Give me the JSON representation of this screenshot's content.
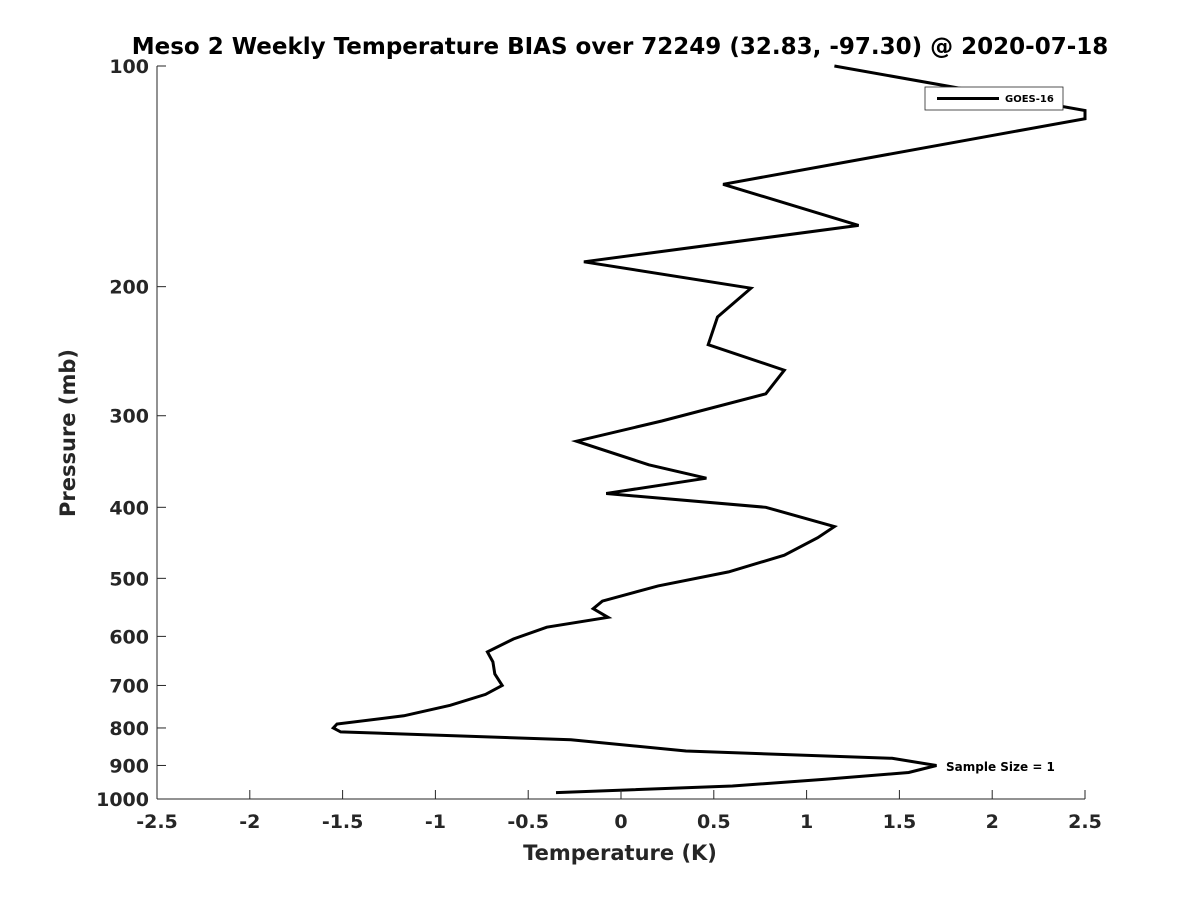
{
  "chart_data": {
    "type": "line",
    "title": "Meso 2 Weekly Temperature BIAS over 72249 (32.83, -97.30) @ 2020-07-18",
    "xlabel": "Temperature (K)",
    "ylabel": "Pressure (mb)",
    "xlim": [
      -2.5,
      2.5
    ],
    "ylim": [
      1000,
      100
    ],
    "y_scale": "log",
    "x_ticks": [
      "-2.5",
      "-2",
      "-1.5",
      "-1",
      "-0.5",
      "0",
      "0.5",
      "1",
      "1.5",
      "2",
      "2.5"
    ],
    "y_ticks": [
      "100",
      "200",
      "300",
      "400",
      "500",
      "600",
      "700",
      "800",
      "900",
      "1000"
    ],
    "grid": false,
    "legend": {
      "placement": "top-right",
      "entries": [
        "GOES-16"
      ]
    },
    "annotation": "Sample Size = 1",
    "series": [
      {
        "name": "GOES-16",
        "color": "#000000",
        "points": [
          {
            "x": 1.15,
            "p": 100
          },
          {
            "x": 2.5,
            "p": 115
          },
          {
            "x": 2.5,
            "p": 118
          },
          {
            "x": 0.55,
            "p": 145
          },
          {
            "x": 1.28,
            "p": 165
          },
          {
            "x": -0.2,
            "p": 185
          },
          {
            "x": 0.7,
            "p": 201
          },
          {
            "x": 0.52,
            "p": 220
          },
          {
            "x": 0.47,
            "p": 240
          },
          {
            "x": 0.88,
            "p": 260
          },
          {
            "x": 0.78,
            "p": 280
          },
          {
            "x": 0.22,
            "p": 305
          },
          {
            "x": -0.24,
            "p": 325
          },
          {
            "x": 0.15,
            "p": 350
          },
          {
            "x": 0.46,
            "p": 365
          },
          {
            "x": -0.08,
            "p": 383
          },
          {
            "x": 0.78,
            "p": 400
          },
          {
            "x": 1.15,
            "p": 425
          },
          {
            "x": 1.06,
            "p": 440
          },
          {
            "x": 0.88,
            "p": 465
          },
          {
            "x": 0.58,
            "p": 490
          },
          {
            "x": 0.2,
            "p": 512
          },
          {
            "x": -0.1,
            "p": 537
          },
          {
            "x": -0.15,
            "p": 550
          },
          {
            "x": -0.07,
            "p": 565
          },
          {
            "x": -0.4,
            "p": 583
          },
          {
            "x": -0.58,
            "p": 605
          },
          {
            "x": -0.72,
            "p": 630
          },
          {
            "x": -0.69,
            "p": 650
          },
          {
            "x": -0.68,
            "p": 675
          },
          {
            "x": -0.64,
            "p": 700
          },
          {
            "x": -0.73,
            "p": 720
          },
          {
            "x": -0.92,
            "p": 745
          },
          {
            "x": -1.17,
            "p": 770
          },
          {
            "x": -1.53,
            "p": 790
          },
          {
            "x": -1.55,
            "p": 800
          },
          {
            "x": -1.51,
            "p": 810
          },
          {
            "x": -0.27,
            "p": 830
          },
          {
            "x": 0.35,
            "p": 860
          },
          {
            "x": 1.46,
            "p": 880
          },
          {
            "x": 1.7,
            "p": 900
          },
          {
            "x": 1.55,
            "p": 920
          },
          {
            "x": 1.1,
            "p": 940
          },
          {
            "x": 0.6,
            "p": 960
          },
          {
            "x": -0.35,
            "p": 980
          }
        ]
      }
    ]
  }
}
